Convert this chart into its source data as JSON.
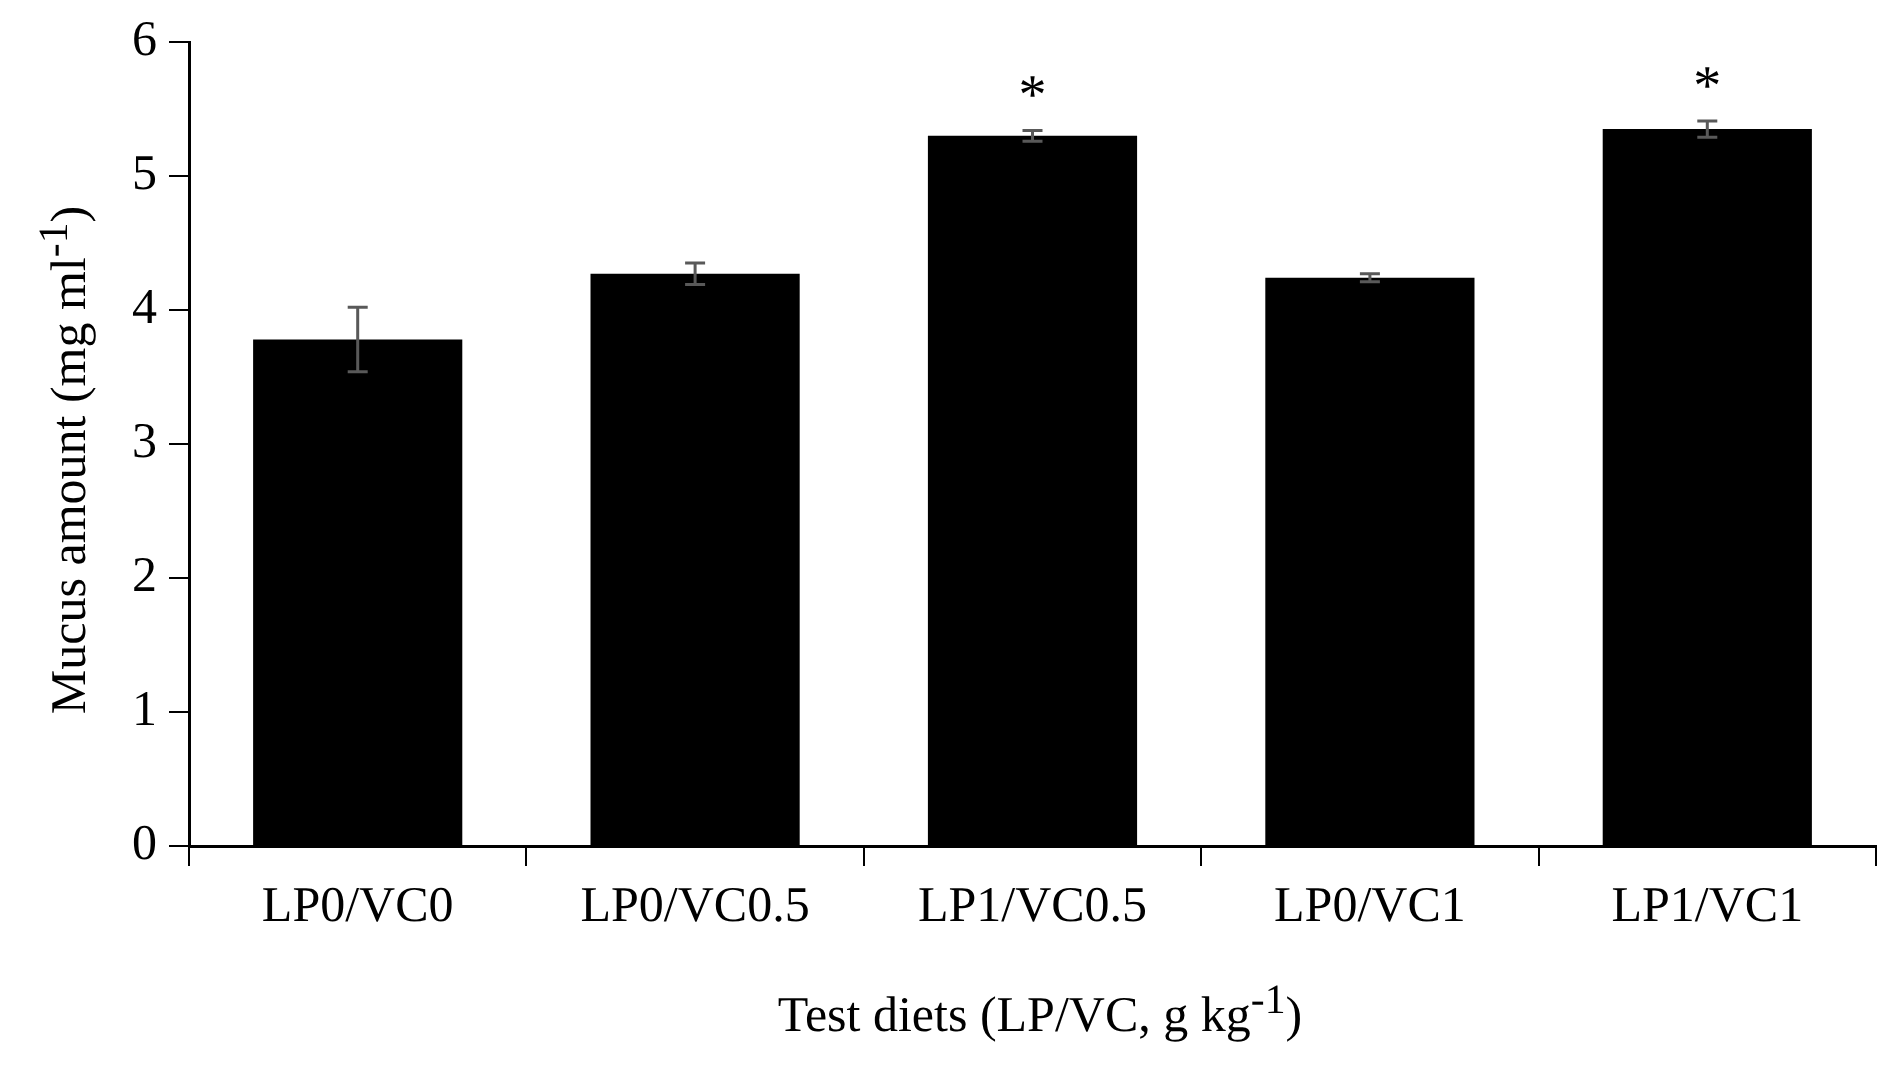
{
  "chart_data": {
    "type": "bar",
    "xlabel": "Test diets (LP/VC, g kg$^{-1}$)",
    "ylabel": "Mucus amount (mg ml$^{-1}$)",
    "categories": [
      "LP0/VC0",
      "LP0/VC0.5",
      "LP1/VC0.5",
      "LP0/VC1",
      "LP1/VC1"
    ],
    "values": [
      3.78,
      4.27,
      5.3,
      4.24,
      5.35
    ],
    "errors": [
      0.24,
      0.08,
      0.04,
      0.03,
      0.06
    ],
    "color": "#000000",
    "ylim": [
      0,
      6
    ],
    "yticks": [
      0,
      1,
      2,
      3,
      4,
      5,
      6
    ],
    "grid": false,
    "legend": false,
    "annotations": [
      {
        "text": "*",
        "x": "LP1/VC0.5",
        "y": 5.34
      },
      {
        "text": "*",
        "x": "LP1/VC1",
        "y": 5.41
      }
    ]
  }
}
